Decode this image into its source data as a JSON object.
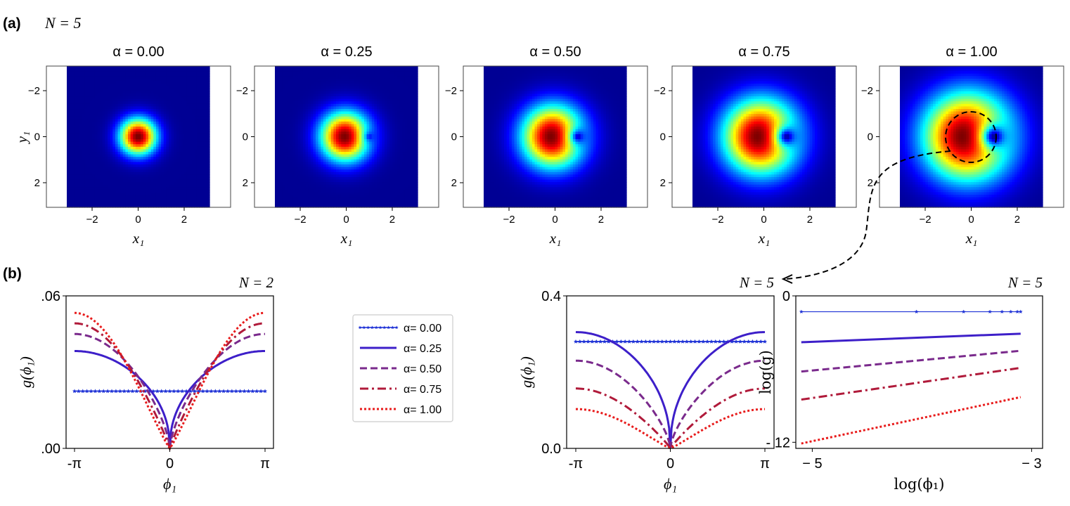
{
  "panel_a": {
    "label": "(a)",
    "n_label": "N = 5",
    "xlabel": "x₁",
    "ylabel": "y₁",
    "ticks": [
      "−2",
      "0",
      "2"
    ],
    "panels": [
      {
        "title": "α = 0.00",
        "alpha": 0.0
      },
      {
        "title": "α = 0.25",
        "alpha": 0.25
      },
      {
        "title": "α = 0.50",
        "alpha": 0.5
      },
      {
        "title": "α = 0.75",
        "alpha": 0.75
      },
      {
        "title": "α = 1.00",
        "alpha": 1.0
      }
    ],
    "colormap": [
      "#00007f",
      "#0000ff",
      "#007fff",
      "#00ffff",
      "#7fff7f",
      "#ffff00",
      "#ff7f00",
      "#ff0000",
      "#7f0000"
    ]
  },
  "panel_b": {
    "label": "(b)",
    "legend": [
      {
        "label": "α= 0.00",
        "color": "#1f32d6",
        "style": "stars"
      },
      {
        "label": "α= 0.25",
        "color": "#3d1fc9",
        "style": "solid"
      },
      {
        "label": "α= 0.50",
        "color": "#7a2a8c",
        "style": "dashed"
      },
      {
        "label": "α= 0.75",
        "color": "#b01a3a",
        "style": "dashdot"
      },
      {
        "label": "α= 1.00",
        "color": "#e81c1c",
        "style": "dotted"
      }
    ]
  },
  "chart_data": [
    {
      "type": "line",
      "title": "N = 2",
      "xlabel": "ϕ₁",
      "ylabel": "g(ϕ₁)",
      "xticks": [
        "-π",
        "0",
        "π"
      ],
      "yticks": [
        ".00",
        ".06"
      ],
      "ylim": [
        0,
        0.06
      ],
      "series": [
        {
          "name": "α= 0.00",
          "at_center": 0.0225,
          "at_edge": 0.0225
        },
        {
          "name": "α= 0.25",
          "at_center": 0.0,
          "at_edge": 0.0383
        },
        {
          "name": "α= 0.50",
          "at_center": 0.0,
          "at_edge": 0.045
        },
        {
          "name": "α= 0.75",
          "at_center": 0.0,
          "at_edge": 0.0492
        },
        {
          "name": "α= 1.00",
          "at_center": 0.0,
          "at_edge": 0.0533
        }
      ]
    },
    {
      "type": "line",
      "title": "N = 5",
      "xlabel": "ϕ₁",
      "ylabel": "g(ϕ₁)",
      "xticks": [
        "-π",
        "0",
        "π"
      ],
      "yticks": [
        "0.0",
        "0.4"
      ],
      "ylim": [
        0,
        0.4
      ],
      "series": [
        {
          "name": "α= 0.00",
          "at_center": 0.28,
          "at_edge": 0.28
        },
        {
          "name": "α= 0.25",
          "at_center": 0.0,
          "at_edge": 0.305
        },
        {
          "name": "α= 0.50",
          "at_center": 0.0,
          "at_edge": 0.23
        },
        {
          "name": "α= 0.75",
          "at_center": 0.0,
          "at_edge": 0.157
        },
        {
          "name": "α= 1.00",
          "at_center": 0.0,
          "at_edge": 0.103
        }
      ]
    },
    {
      "type": "line",
      "title": "N = 5",
      "xlabel": "log(ϕ₁)",
      "ylabel": "log(g)",
      "xticks": [
        "− 5",
        "− 3"
      ],
      "yticks": [
        "0",
        "- 12"
      ],
      "xlim": [
        -5.15,
        -2.9
      ],
      "ylim": [
        -12.5,
        0
      ],
      "series": [
        {
          "name": "α= 0.00",
          "x": [
            -5.1,
            -3.1
          ],
          "y": [
            -1.3,
            -1.3
          ]
        },
        {
          "name": "α= 0.25",
          "x": [
            -5.1,
            -3.1
          ],
          "y": [
            -3.8,
            -3.1
          ]
        },
        {
          "name": "α= 0.50",
          "x": [
            -5.1,
            -3.1
          ],
          "y": [
            -6.2,
            -4.5
          ]
        },
        {
          "name": "α= 0.75",
          "x": [
            -5.1,
            -3.1
          ],
          "y": [
            -8.5,
            -5.9
          ]
        },
        {
          "name": "α= 1.00",
          "x": [
            -5.1,
            -3.1
          ],
          "y": [
            -12.1,
            -8.3
          ]
        }
      ]
    }
  ]
}
